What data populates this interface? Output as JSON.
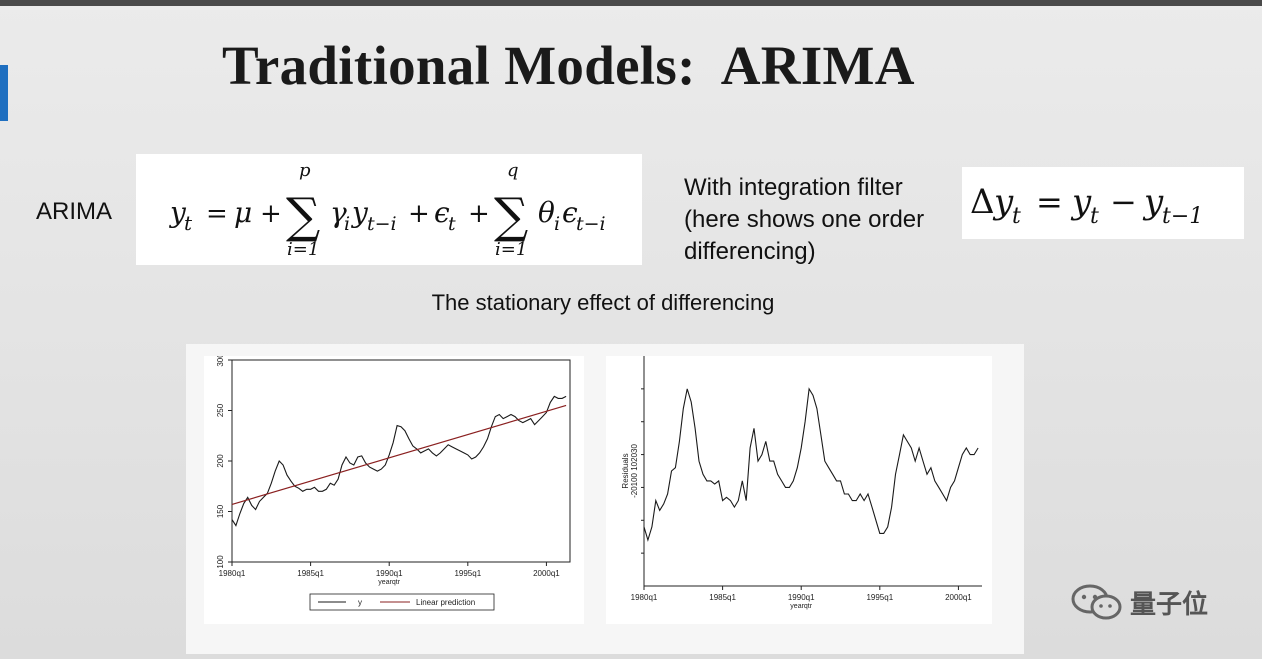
{
  "slide": {
    "title": "Traditional Models:  ARIMA",
    "arima_label": "ARIMA",
    "filter_lines": [
      "With integration filter",
      "(here shows one order",
      "differencing)"
    ],
    "subtitle": "The stationary effect of differencing",
    "watermark": "量子位"
  },
  "formulas": {
    "arima": {
      "lhs": "y",
      "lhs_sub": "t",
      "mu": "μ",
      "sum1_upper": "p",
      "sum1_lower": "i=1",
      "gamma": "γ",
      "gamma_sub": "i",
      "y_lag": "y",
      "y_lag_sub": "t−i",
      "eps": "ϵ",
      "eps_sub": "t",
      "sum2_upper": "q",
      "sum2_lower": "i=1",
      "theta": "θ",
      "theta_sub": "i",
      "eps_lag": "ϵ",
      "eps_lag_sub": "t−i"
    },
    "difference": {
      "delta": "Δ",
      "y": "y",
      "sub_t": "t",
      "sub_t1": "t−1"
    }
  },
  "chart_data": [
    {
      "type": "line",
      "xlabel": "yearqtr",
      "ylabel": "",
      "x_ticks": [
        "1980q1",
        "1985q1",
        "1990q1",
        "1995q1",
        "2000q1"
      ],
      "y_ticks": [
        100,
        150,
        200,
        250,
        300
      ],
      "xlim": [
        1980.0,
        2001.5
      ],
      "ylim": [
        100,
        300
      ],
      "grid": false,
      "legend_position": "bottom",
      "series": [
        {
          "name": "y",
          "x": [
            1980.0,
            1980.25,
            1980.5,
            1980.75,
            1981.0,
            1981.25,
            1981.5,
            1981.75,
            1982.0,
            1982.25,
            1982.5,
            1982.75,
            1983.0,
            1983.25,
            1983.5,
            1983.75,
            1984.0,
            1984.25,
            1984.5,
            1984.75,
            1985.0,
            1985.25,
            1985.5,
            1985.75,
            1986.0,
            1986.25,
            1986.5,
            1986.75,
            1987.0,
            1987.25,
            1987.5,
            1987.75,
            1988.0,
            1988.25,
            1988.5,
            1988.75,
            1989.0,
            1989.25,
            1989.5,
            1989.75,
            1990.0,
            1990.25,
            1990.5,
            1990.75,
            1991.0,
            1991.25,
            1991.5,
            1991.75,
            1992.0,
            1992.25,
            1992.5,
            1992.75,
            1993.0,
            1993.25,
            1993.5,
            1993.75,
            1994.0,
            1994.25,
            1994.5,
            1994.75,
            1995.0,
            1995.25,
            1995.5,
            1995.75,
            1996.0,
            1996.25,
            1996.5,
            1996.75,
            1997.0,
            1997.25,
            1997.5,
            1997.75,
            1998.0,
            1998.25,
            1998.5,
            1998.75,
            1999.0,
            1999.25,
            1999.5,
            1999.75,
            2000.0,
            2000.25,
            2000.5,
            2000.75,
            2001.0,
            2001.25
          ],
          "values": [
            142,
            136,
            148,
            158,
            164,
            156,
            152,
            160,
            164,
            168,
            178,
            190,
            200,
            196,
            186,
            180,
            175,
            173,
            170,
            172,
            172,
            174,
            170,
            170,
            172,
            178,
            176,
            182,
            196,
            204,
            198,
            196,
            204,
            205,
            198,
            194,
            192,
            190,
            192,
            196,
            206,
            218,
            235,
            234,
            230,
            222,
            215,
            212,
            208,
            210,
            212,
            208,
            205,
            208,
            212,
            216,
            214,
            212,
            210,
            208,
            206,
            202,
            204,
            208,
            214,
            222,
            234,
            244,
            246,
            242,
            244,
            246,
            244,
            240,
            238,
            240,
            242,
            236,
            240,
            244,
            248,
            258,
            264,
            262,
            262,
            264
          ]
        },
        {
          "name": "Linear prediction",
          "x": [
            1980.0,
            2001.25
          ],
          "values": [
            157,
            255
          ]
        }
      ]
    },
    {
      "type": "line",
      "xlabel": "yearqtr",
      "ylabel": "Residuals",
      "x_ticks": [
        "1980q1",
        "1985q1",
        "1990q1",
        "1995q1",
        "2000q1"
      ],
      "y_ticks": [
        -20,
        -10,
        0,
        10,
        20,
        30
      ],
      "y_tick_label": "-20100 102030",
      "xlim": [
        1980.0,
        2001.5
      ],
      "ylim": [
        -30,
        40
      ],
      "grid": false,
      "series": [
        {
          "name": "",
          "x": [
            1980.0,
            1980.25,
            1980.5,
            1980.75,
            1981.0,
            1981.25,
            1981.5,
            1981.75,
            1982.0,
            1982.25,
            1982.5,
            1982.75,
            1983.0,
            1983.25,
            1983.5,
            1983.75,
            1984.0,
            1984.25,
            1984.5,
            1984.75,
            1985.0,
            1985.25,
            1985.5,
            1985.75,
            1986.0,
            1986.25,
            1986.5,
            1986.75,
            1987.0,
            1987.25,
            1987.5,
            1987.75,
            1988.0,
            1988.25,
            1988.5,
            1988.75,
            1989.0,
            1989.25,
            1989.5,
            1989.75,
            1990.0,
            1990.25,
            1990.5,
            1990.75,
            1991.0,
            1991.25,
            1991.5,
            1991.75,
            1992.0,
            1992.25,
            1992.5,
            1992.75,
            1993.0,
            1993.25,
            1993.5,
            1993.75,
            1994.0,
            1994.25,
            1994.5,
            1994.75,
            1995.0,
            1995.25,
            1995.5,
            1995.75,
            1996.0,
            1996.25,
            1996.5,
            1996.75,
            1997.0,
            1997.25,
            1997.5,
            1997.75,
            1998.0,
            1998.25,
            1998.5,
            1998.75,
            1999.0,
            1999.25,
            1999.5,
            1999.75,
            2000.0,
            2000.25,
            2000.5,
            2000.75,
            2001.0,
            2001.25
          ],
          "values": [
            -12,
            -16,
            -12,
            -4,
            -7,
            -5,
            -2,
            5,
            6,
            14,
            24,
            30,
            26,
            18,
            8,
            4,
            2,
            2,
            1,
            2,
            -4,
            -3,
            -4,
            -6,
            -4,
            2,
            -4,
            12,
            18,
            8,
            10,
            14,
            8,
            8,
            4,
            2,
            0,
            0,
            2,
            6,
            12,
            20,
            30,
            28,
            24,
            16,
            8,
            6,
            4,
            2,
            2,
            -2,
            -2,
            -4,
            -4,
            -2,
            -4,
            -2,
            -6,
            -10,
            -14,
            -14,
            -12,
            -6,
            4,
            10,
            16,
            14,
            12,
            8,
            12,
            8,
            4,
            6,
            2,
            0,
            -2,
            -4,
            0,
            2,
            6,
            10,
            12,
            10,
            10,
            12
          ]
        }
      ]
    }
  ]
}
